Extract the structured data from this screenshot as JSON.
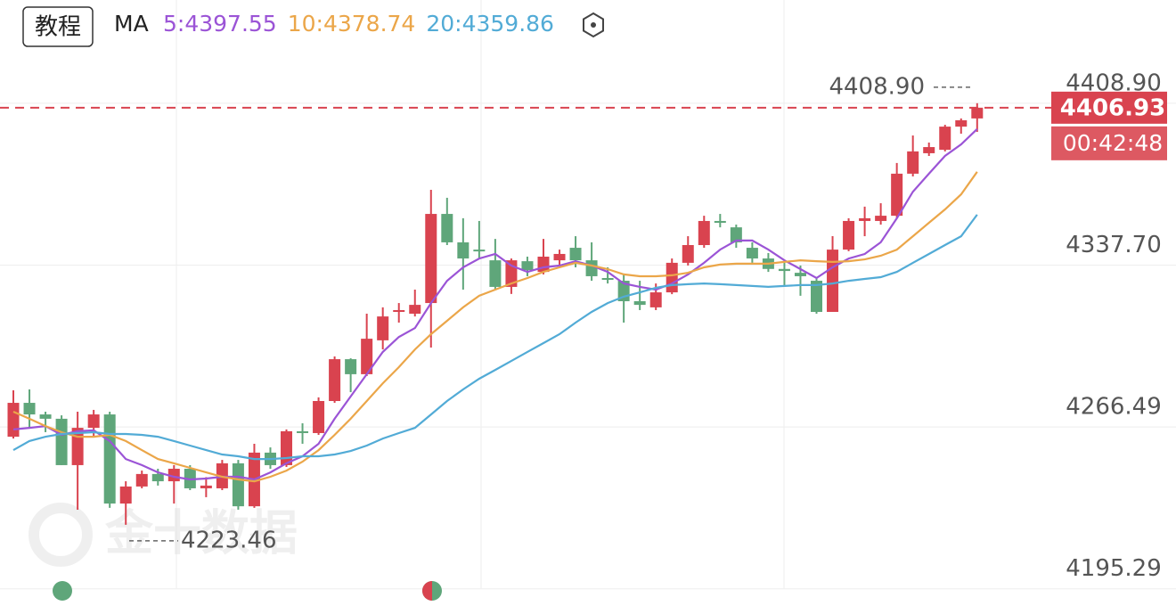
{
  "chart_data": {
    "type": "candlestick",
    "tutorial_button": "教程",
    "ma_label": "MA",
    "up_color": "#d9434f",
    "down_color": "#5fa67a",
    "ylim": [
      4195.19,
      4454.3
    ],
    "yticks": [
      4195.29,
      4266.49,
      {
        "value": 4337.7,
        "label": "4337.70"
      },
      {
        "value": 4408.9,
        "label": "4408.90"
      }
    ],
    "grid": true,
    "open": [
      4262.2,
      4277.1,
      4272.0,
      4270.1,
      4249.7,
      4266.1,
      4272.0,
      4232.8,
      4240.3,
      4245.8,
      4242.6,
      4248.1,
      4239.5,
      4239.5,
      4250.5,
      4231.6,
      4255.2,
      4249.7,
      4264.6,
      4263.8,
      4277.9,
      4296.3,
      4289.7,
      4304.6,
      4317.1,
      4316.3,
      4321.0,
      4360.2,
      4347.7,
      4344.5,
      4339.8,
      4328.1,
      4339.4,
      4334.7,
      4339.8,
      4345.3,
      4339.8,
      4332.0,
      4330.8,
      4321.8,
      4319.1,
      4325.7,
      4338.7,
      4346.5,
      4357.1,
      4354.3,
      4345.3,
      4340.6,
      4336.0,
      4334.3,
      4330.8,
      4317.1,
      4344.5,
      4357.1,
      4357.1,
      4359.4,
      4377.9,
      4386.9,
      4388.4,
      4398.6,
      4402.2
    ],
    "high": [
      4282.6,
      4283.0,
      4273.2,
      4271.6,
      4273.2,
      4274.0,
      4273.2,
      4242.6,
      4247.3,
      4248.1,
      4249.7,
      4249.7,
      4244.4,
      4252.0,
      4252.0,
      4259.1,
      4257.5,
      4265.4,
      4268.1,
      4279.5,
      4297.5,
      4296.7,
      4316.3,
      4319.1,
      4321.0,
      4326.9,
      4370.8,
      4367.3,
      4358.3,
      4357.1,
      4349.2,
      4340.6,
      4341.4,
      4349.2,
      4344.5,
      4350.4,
      4347.7,
      4336.7,
      4333.6,
      4330.8,
      4329.6,
      4340.6,
      4350.4,
      4359.4,
      4360.2,
      4355.5,
      4347.7,
      4343.0,
      4338.7,
      4337.5,
      4331.9,
      4350.4,
      4358.3,
      4363.4,
      4364.9,
      4382.6,
      4394.7,
      4391.6,
      4399.4,
      4402.2,
      4408.9
    ],
    "low": [
      4261.4,
      4266.1,
      4264.2,
      4249.7,
      4230.1,
      4262.2,
      4230.9,
      4223.46,
      4239.5,
      4240.7,
      4232.8,
      4238.7,
      4235.6,
      4238.7,
      4230.1,
      4230.9,
      4248.1,
      4248.9,
      4259.1,
      4263.0,
      4277.1,
      4281.8,
      4288.9,
      4300.6,
      4312.4,
      4315.1,
      4301.4,
      4346.5,
      4326.9,
      4340.6,
      4326.9,
      4325.0,
      4332.8,
      4333.6,
      4337.5,
      4336.7,
      4330.8,
      4329.6,
      4312.4,
      4317.9,
      4317.9,
      4324.9,
      4337.5,
      4345.3,
      4354.3,
      4345.3,
      4338.7,
      4334.7,
      4328.1,
      4324.2,
      4316.3,
      4317.1,
      4343.8,
      4350.4,
      4355.5,
      4358.3,
      4376.7,
      4385.7,
      4387.7,
      4395.5,
      4396.3
    ],
    "close": [
      4277.1,
      4272.0,
      4270.1,
      4249.7,
      4266.1,
      4272.0,
      4232.8,
      4240.3,
      4245.8,
      4242.6,
      4248.1,
      4239.5,
      4240.7,
      4250.5,
      4231.6,
      4255.2,
      4249.7,
      4264.6,
      4263.8,
      4277.9,
      4296.3,
      4289.7,
      4305.3,
      4315.1,
      4317.9,
      4320.2,
      4360.2,
      4347.7,
      4340.6,
      4343.8,
      4328.1,
      4339.8,
      4335.5,
      4341.4,
      4342.6,
      4339.8,
      4332.8,
      4331.6,
      4321.8,
      4320.2,
      4325.7,
      4338.7,
      4346.5,
      4357.1,
      4356.3,
      4347.7,
      4340.6,
      4336.0,
      4335.1,
      4332.8,
      4317.1,
      4344.5,
      4357.1,
      4358.3,
      4359.4,
      4377.9,
      4387.7,
      4389.6,
      4398.6,
      4401.4,
      4406.93
    ],
    "series": [
      {
        "name": "5:4397.55",
        "color": "#9b54d6",
        "values": [
          4265.4,
          4266.1,
          4266.9,
          4263.0,
          4264.6,
          4265.0,
          4260.3,
          4252.4,
          4249.7,
          4246.5,
          4244.6,
          4243.4,
          4243.8,
          4244.6,
          4244.6,
          4243.4,
          4246.5,
          4250.5,
          4253.6,
          4259.1,
          4270.1,
          4279.9,
          4289.7,
          4299.5,
          4306.1,
          4310.0,
          4321.0,
          4330.8,
          4336.7,
          4340.6,
          4342.6,
          4337.5,
          4334.7,
          4336.7,
          4337.5,
          4339.4,
          4337.5,
          4334.7,
          4329.6,
          4328.1,
          4326.9,
          4329.6,
          4333.6,
          4338.7,
          4344.5,
          4348.5,
          4348.5,
          4344.5,
          4339.8,
          4335.9,
          4332.0,
          4336.7,
          4340.6,
          4342.6,
          4347.7,
          4358.3,
          4370.0,
          4377.9,
          4385.7,
          4390.8,
          4397.55
        ]
      },
      {
        "name": "10:4378.74",
        "color": "#eba649",
        "values": [
          4273.2,
          4270.1,
          4266.9,
          4264.2,
          4262.2,
          4262.2,
          4263.0,
          4260.3,
          4256.3,
          4252.4,
          4250.5,
          4248.5,
          4246.5,
          4244.6,
          4243.4,
          4242.6,
          4244.6,
          4247.3,
          4251.2,
          4256.3,
          4263.0,
          4270.1,
          4277.9,
          4285.7,
          4292.8,
          4300.6,
          4307.3,
          4313.2,
          4319.1,
          4324.2,
          4326.9,
          4329.6,
          4332.0,
          4334.7,
          4336.7,
          4338.7,
          4337.5,
          4335.9,
          4333.6,
          4332.8,
          4332.8,
          4333.2,
          4334.3,
          4336.7,
          4337.9,
          4338.3,
          4338.3,
          4338.3,
          4339.1,
          4339.8,
          4339.4,
          4339.1,
          4339.4,
          4340.2,
          4341.8,
          4344.5,
          4350.4,
          4356.3,
          4362.2,
          4368.8,
          4378.74
        ]
      },
      {
        "name": "20:4359.86",
        "color": "#52abd6",
        "values": [
          4256.3,
          4260.3,
          4262.2,
          4263.4,
          4263.8,
          4264.2,
          4263.4,
          4263.4,
          4263.0,
          4262.2,
          4260.3,
          4258.3,
          4256.3,
          4254.4,
          4253.6,
          4252.4,
          4252.4,
          4252.8,
          4253.6,
          4253.6,
          4254.4,
          4255.9,
          4258.3,
          4261.4,
          4263.8,
          4266.1,
          4272.0,
          4277.9,
          4283.0,
          4287.7,
          4291.6,
          4295.5,
          4299.5,
          4303.4,
          4307.3,
          4312.4,
          4317.1,
          4321.0,
          4323.8,
          4325.7,
          4327.7,
          4328.9,
          4329.3,
          4329.6,
          4329.3,
          4328.9,
          4328.5,
          4328.1,
          4328.5,
          4328.9,
          4328.9,
          4329.6,
          4330.8,
          4331.6,
          4332.4,
          4334.7,
          4338.7,
          4342.6,
          4346.5,
          4350.4,
          4359.86
        ]
      }
    ],
    "high_annotation": {
      "value": 4408.9,
      "label": "4408.90"
    },
    "low_annotation": 4223.46,
    "last_price": 4406.93,
    "countdown": "00:42:48",
    "watermark": "金十数据"
  }
}
